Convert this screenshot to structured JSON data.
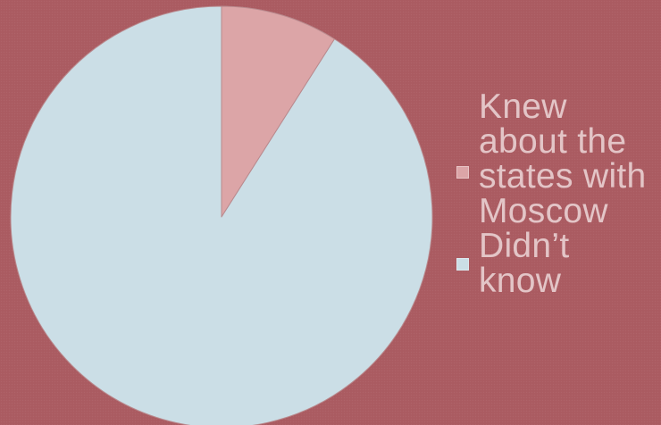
{
  "chart_data": {
    "type": "pie",
    "slices": [
      {
        "label": "Knew about the states with Moscow",
        "value": 9,
        "color": "#dca5a7"
      },
      {
        "label": "Didn’t know",
        "value": 91,
        "color": "#cbdee6"
      }
    ],
    "title": "",
    "legend": "right"
  }
}
